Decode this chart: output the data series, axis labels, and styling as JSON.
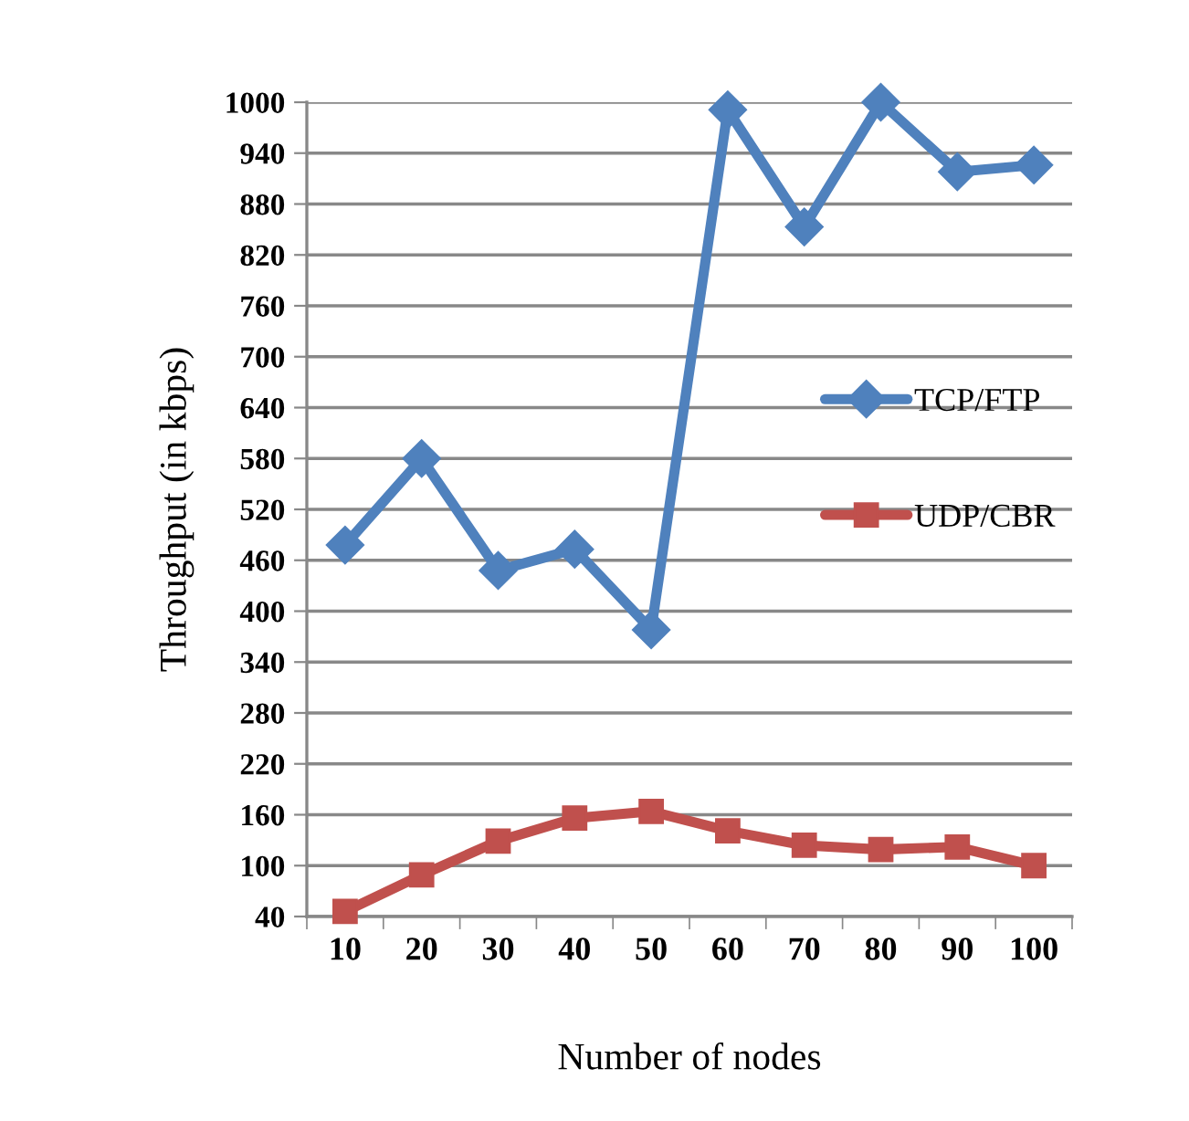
{
  "chart_data": {
    "type": "line",
    "xlabel": "Number of nodes",
    "ylabel": "Throughput (in kbps)",
    "categories": [
      "10",
      "20",
      "30",
      "40",
      "50",
      "60",
      "70",
      "80",
      "90",
      "100"
    ],
    "series": [
      {
        "name": "TCP/FTP",
        "color": "#4f81bd",
        "marker": "diamond",
        "values": [
          478,
          580,
          448,
          473,
          378,
          991,
          853,
          1000,
          918,
          926
        ]
      },
      {
        "name": "UDP/CBR",
        "color": "#c0504d",
        "marker": "square",
        "values": [
          46,
          89,
          129,
          156,
          164,
          141,
          124,
          119,
          122,
          100
        ]
      }
    ],
    "ylim": [
      40,
      1000
    ],
    "yticks": [
      40,
      100,
      160,
      220,
      280,
      340,
      400,
      460,
      520,
      580,
      640,
      700,
      760,
      820,
      880,
      940,
      1000
    ],
    "grid": "y",
    "legend": "right",
    "line_style": "solid"
  }
}
